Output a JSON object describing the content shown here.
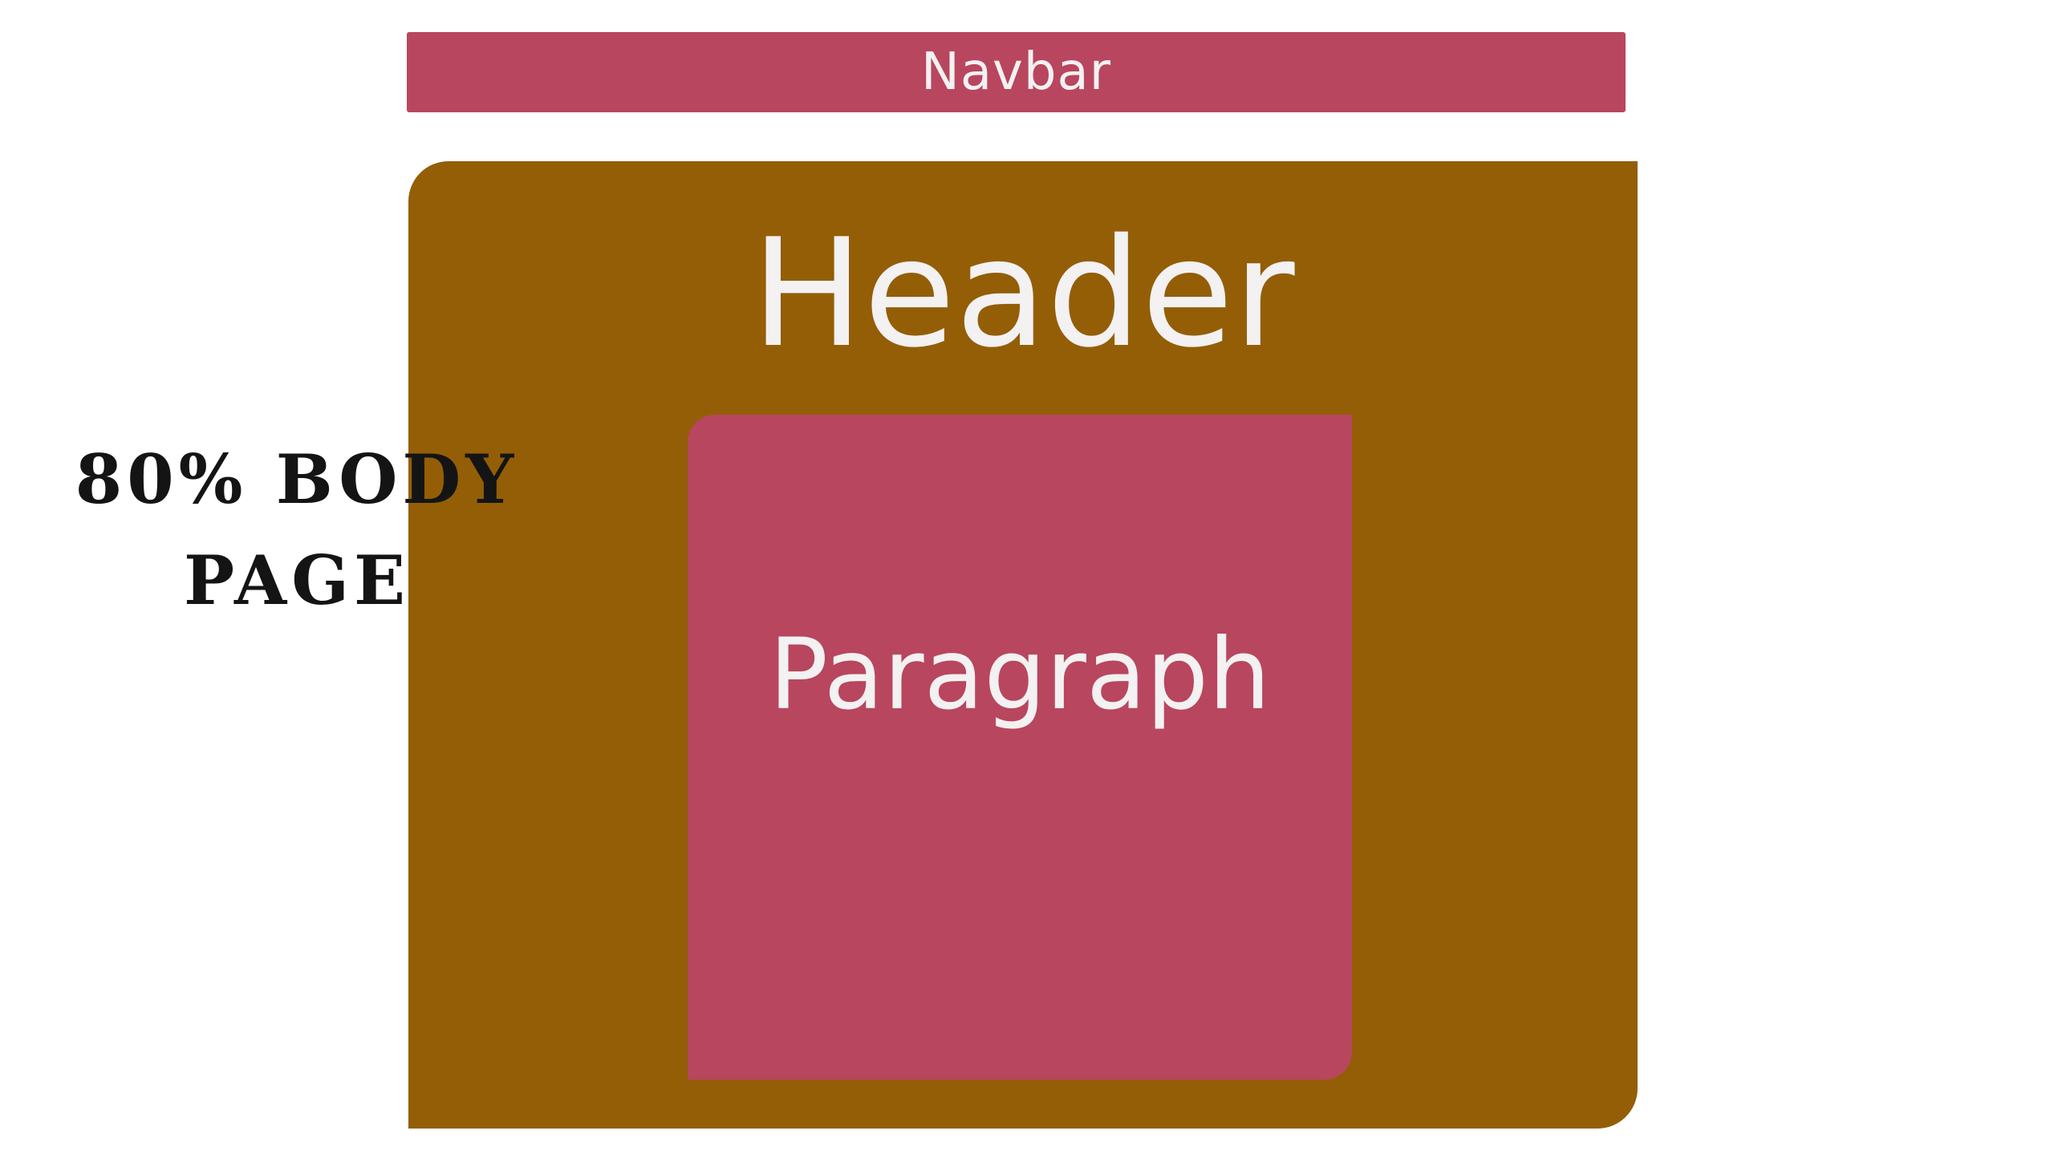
{
  "navbar": {
    "label": "Navbar"
  },
  "body_box": {
    "header_label": "Header",
    "paragraph_label": "Paragraph"
  },
  "side_label": "80% BODY PAGE",
  "colors": {
    "navbar": "#b8465e",
    "body": "#935e06",
    "paragraph": "#b8465e",
    "label_text": "#f3f1f1",
    "side_text": "#141414"
  }
}
